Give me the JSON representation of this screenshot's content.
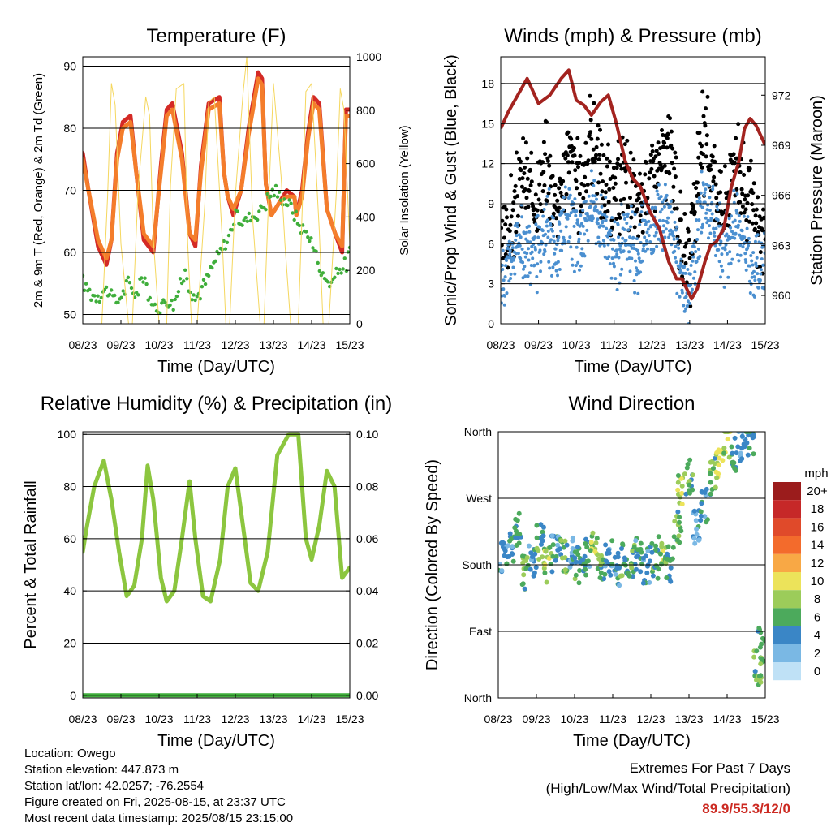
{
  "chart_data": [
    {
      "type": "line",
      "title": "Temperature (F)",
      "xlabel": "Time (Day/UTC)",
      "ylabel": "2m & 9m T (Red, Orange) & 2m Td (Green)",
      "y2label": "Solar Insolation (Yellow)",
      "x_ticks": [
        "08/23",
        "09/23",
        "10/23",
        "11/23",
        "12/23",
        "13/23",
        "14/23",
        "15/23"
      ],
      "ylim": [
        48.5,
        91.5
      ],
      "y_ticks": [
        50,
        60,
        70,
        80,
        90
      ],
      "y2lim": [
        0,
        1000
      ],
      "y2_ticks": [
        0,
        200,
        400,
        600,
        800,
        1000
      ],
      "grid": "horizontal",
      "series": [
        {
          "name": "2m T",
          "color": "#d42a25",
          "x": [
            0,
            0.15,
            0.4,
            0.62,
            0.75,
            0.9,
            1.05,
            1.25,
            1.4,
            1.6,
            1.85,
            2.05,
            2.2,
            2.35,
            2.6,
            2.8,
            2.95,
            3.1,
            3.3,
            3.58,
            3.7,
            3.8,
            3.95,
            4.15,
            4.35,
            4.6,
            4.7,
            4.8,
            4.95,
            5.15,
            5.35,
            5.55,
            5.6,
            5.75,
            5.9,
            6.05,
            6.2,
            6.4,
            6.62,
            6.8,
            6.9,
            7.0
          ],
          "values": [
            76,
            70,
            61,
            58,
            62,
            76,
            81,
            82,
            73,
            62,
            60,
            74,
            83,
            84,
            76,
            63,
            61,
            74,
            84,
            85,
            73,
            69,
            66,
            70,
            80,
            89,
            88,
            71,
            66,
            68,
            70,
            69,
            66,
            70,
            79,
            85,
            84,
            67,
            63,
            60,
            83,
            83
          ]
        },
        {
          "name": "9m T",
          "color": "#f47d2b",
          "x": [
            0,
            0.15,
            0.4,
            0.62,
            0.75,
            0.9,
            1.05,
            1.25,
            1.4,
            1.6,
            1.85,
            2.05,
            2.2,
            2.35,
            2.6,
            2.8,
            2.95,
            3.1,
            3.3,
            3.58,
            3.7,
            3.8,
            3.95,
            4.15,
            4.35,
            4.6,
            4.7,
            4.8,
            4.95,
            5.15,
            5.35,
            5.55,
            5.6,
            5.75,
            5.9,
            6.05,
            6.2,
            6.4,
            6.62,
            6.8,
            6.9,
            7.0
          ],
          "values": [
            75,
            70,
            62,
            59,
            62,
            75,
            80,
            81,
            73,
            63,
            61,
            73,
            82,
            83,
            75,
            63,
            62,
            73,
            83,
            84,
            73,
            69,
            67,
            70,
            79,
            88,
            87,
            71,
            66,
            68,
            69,
            69,
            66,
            69,
            78,
            84,
            83,
            67,
            63,
            61,
            82,
            82
          ]
        },
        {
          "name": "2m Td",
          "color": "#3fae3b",
          "x": [
            0,
            0.3,
            0.6,
            0.9,
            1.2,
            1.4,
            1.6,
            1.8,
            2.1,
            2.4,
            2.7,
            2.9,
            3.2,
            3.5,
            3.8,
            4.0,
            4.2,
            4.5,
            4.8,
            5.0,
            5.2,
            5.5,
            5.7,
            5.9,
            6.1,
            6.3,
            6.5,
            6.7,
            6.9,
            7.0
          ],
          "values": [
            55,
            53,
            54,
            52,
            55,
            53,
            57,
            51,
            52,
            52,
            57,
            52,
            55,
            59,
            62,
            66,
            65,
            66,
            68,
            70,
            69,
            67,
            64,
            63,
            60,
            56,
            55,
            57,
            58,
            60
          ]
        },
        {
          "name": "Solar",
          "color": "#f5d75e",
          "axis": "y2",
          "x": [
            0,
            0.3,
            0.5,
            0.65,
            0.75,
            0.85,
            1.0,
            1.2,
            1.3,
            1.45,
            1.65,
            1.75,
            1.85,
            2.0,
            2.2,
            2.3,
            2.45,
            2.65,
            2.75,
            2.85,
            3.0,
            3.2,
            3.3,
            3.45,
            3.65,
            3.75,
            3.85,
            4.0,
            4.2,
            4.3,
            4.45,
            4.65,
            4.75,
            4.85,
            5.0,
            5.2,
            5.3,
            5.45,
            5.65,
            5.75,
            5.85,
            6.0,
            6.2,
            6.3,
            6.45,
            6.65,
            6.75,
            6.85,
            7.0
          ],
          "values": [
            0,
            0,
            0,
            480,
            900,
            820,
            300,
            0,
            0,
            500,
            850,
            780,
            320,
            0,
            0,
            520,
            880,
            900,
            300,
            0,
            0,
            450,
            830,
            850,
            330,
            0,
            0,
            480,
            860,
            1000,
            400,
            0,
            0,
            380,
            900,
            550,
            300,
            0,
            0,
            420,
            870,
            900,
            350,
            0,
            0,
            500,
            880,
            800,
            300
          ]
        }
      ]
    },
    {
      "type": "scatter",
      "title": "Winds (mph) & Pressure (mb)",
      "xlabel": "Time (Day/UTC)",
      "ylabel": "Sonic/Prop Wind & Gust (Blue, Black)",
      "y2label": "Station Pressure (Maroon)",
      "x_ticks": [
        "08/23",
        "09/23",
        "10/23",
        "11/23",
        "12/23",
        "13/23",
        "14/23",
        "15/23"
      ],
      "ylim": [
        0,
        20
      ],
      "y_ticks": [
        0,
        3,
        6,
        9,
        12,
        15,
        18
      ],
      "y2lim": [
        958.3,
        974.3
      ],
      "y2_ticks": [
        960,
        963,
        966,
        969,
        972
      ],
      "grid": "horizontal",
      "series": [
        {
          "name": "Gust",
          "color": "#000000",
          "x": [
            0,
            0.3,
            0.6,
            0.9,
            1.2,
            1.5,
            1.8,
            2.1,
            2.4,
            2.7,
            3.0,
            3.3,
            3.6,
            3.9,
            4.2,
            4.5,
            4.8,
            5.0,
            5.3,
            5.6,
            5.9,
            6.2,
            6.5,
            6.8,
            7.0
          ],
          "values": [
            5,
            8,
            11,
            9,
            12,
            9,
            13,
            10,
            14,
            11,
            9,
            12,
            8,
            11,
            12,
            13,
            5,
            4,
            14,
            12,
            8,
            13,
            9,
            7,
            6
          ]
        },
        {
          "name": "Wind",
          "color": "#4a8fd0",
          "x": [
            0,
            0.3,
            0.6,
            0.9,
            1.2,
            1.5,
            1.8,
            2.1,
            2.4,
            2.7,
            3.0,
            3.3,
            3.6,
            3.9,
            4.2,
            4.5,
            4.8,
            5.0,
            5.3,
            5.6,
            5.9,
            6.2,
            6.5,
            6.8,
            7.0
          ],
          "values": [
            3,
            5,
            6,
            5,
            7,
            6,
            8,
            6,
            9,
            7,
            5,
            7,
            5,
            7,
            8,
            8,
            3,
            2,
            9,
            8,
            5,
            8,
            5,
            4,
            4
          ]
        },
        {
          "name": "Pressure",
          "color": "#a3231f",
          "axis": "y2",
          "x": [
            0,
            0.2,
            0.45,
            0.7,
            1.0,
            1.3,
            1.6,
            1.8,
            2.0,
            2.2,
            2.4,
            2.65,
            2.85,
            3.05,
            3.3,
            3.5,
            3.7,
            3.95,
            4.2,
            4.45,
            4.65,
            4.8,
            4.9,
            5.05,
            5.2,
            5.4,
            5.55,
            5.7,
            5.9,
            6.1,
            6.3,
            6.45,
            6.6,
            6.75,
            6.9,
            7.0
          ],
          "values": [
            970,
            971,
            972,
            973,
            971.5,
            972,
            973,
            973.5,
            971.7,
            971.4,
            970.8,
            971.6,
            972,
            970.4,
            968,
            967,
            966.5,
            965,
            964,
            962,
            961,
            961,
            960.5,
            959.8,
            960.4,
            962,
            963,
            963.2,
            964,
            966.5,
            968,
            970,
            970.6,
            970.2,
            969.5,
            969
          ]
        }
      ]
    },
    {
      "type": "line",
      "title": "Relative Humidity (%) & Precipitation (in)",
      "xlabel": "Time (Day/UTC)",
      "ylabel": "Percent & Total Rainfall",
      "x_ticks": [
        "08/23",
        "09/23",
        "10/23",
        "11/23",
        "12/23",
        "13/23",
        "14/23",
        "15/23"
      ],
      "ylim": [
        -1,
        101
      ],
      "y_ticks": [
        0,
        20,
        40,
        60,
        80,
        100
      ],
      "y2lim": [
        -0.001,
        0.101
      ],
      "y2_ticks": [
        "0.00",
        "0.02",
        "0.04",
        "0.06",
        "0.08",
        "0.10"
      ],
      "grid": "horizontal",
      "series": [
        {
          "name": "RH",
          "color": "#8cc63f",
          "x": [
            0,
            0.1,
            0.3,
            0.55,
            0.75,
            0.95,
            1.15,
            1.35,
            1.55,
            1.7,
            1.85,
            2.05,
            2.2,
            2.4,
            2.6,
            2.8,
            2.95,
            3.15,
            3.35,
            3.6,
            3.8,
            4.0,
            4.2,
            4.4,
            4.6,
            4.85,
            5.1,
            5.4,
            5.65,
            5.85,
            6.0,
            6.2,
            6.4,
            6.6,
            6.8,
            7.0
          ],
          "values": [
            55,
            64,
            80,
            90,
            75,
            55,
            38,
            42,
            60,
            88,
            75,
            45,
            36,
            40,
            60,
            82,
            60,
            38,
            36,
            52,
            80,
            87,
            65,
            43,
            40,
            55,
            92,
            100,
            100,
            60,
            52,
            65,
            86,
            80,
            45,
            49
          ]
        },
        {
          "name": "Precipitation",
          "color": "#3fae3b",
          "axis": "y2",
          "x": [
            0,
            7
          ],
          "values": [
            0,
            0
          ]
        }
      ]
    },
    {
      "type": "scatter",
      "title": "Wind Direction",
      "xlabel": "Time (Day/UTC)",
      "ylabel": "Direction (Colored By Speed)",
      "x_ticks": [
        "08/23",
        "09/23",
        "10/23",
        "11/23",
        "12/23",
        "13/23",
        "14/23",
        "15/23"
      ],
      "y_labels": [
        "North",
        "West",
        "South",
        "East",
        "North"
      ],
      "y_ticks": [
        360,
        270,
        180,
        90,
        0
      ],
      "ylim": [
        0,
        360
      ],
      "grid": "horizontal",
      "colorbar": {
        "label": "mph",
        "levels": [
          "20+",
          "18",
          "16",
          "14",
          "12",
          "10",
          "8",
          "6",
          "4",
          "2",
          "0"
        ],
        "colors": [
          "#9b1c1c",
          "#c62828",
          "#e04a2a",
          "#f36b2c",
          "#f8a845",
          "#ece35a",
          "#9ccc5a",
          "#4caa5c",
          "#3a86c6",
          "#7ab8e4",
          "#bfe1f6"
        ]
      },
      "series": [
        {
          "name": "Direction",
          "x": [
            0.1,
            0.3,
            0.5,
            0.7,
            0.9,
            1.1,
            1.3,
            1.5,
            1.7,
            1.9,
            2.1,
            2.3,
            2.5,
            2.7,
            2.9,
            3.1,
            3.3,
            3.5,
            3.7,
            3.9,
            4.1,
            4.3,
            4.5,
            4.7,
            4.8,
            5.0,
            5.2,
            5.4,
            5.6,
            5.8,
            6.0,
            6.2,
            6.4,
            6.6,
            6.8,
            6.9
          ],
          "values": [
            190,
            200,
            230,
            170,
            185,
            210,
            180,
            195,
            190,
            200,
            180,
            190,
            200,
            185,
            190,
            175,
            190,
            185,
            195,
            180,
            185,
            200,
            180,
            230,
            280,
            300,
            230,
            260,
            300,
            320,
            350,
            330,
            340,
            350,
            40,
            70
          ],
          "speeds": [
            3,
            4,
            5,
            6,
            3,
            5,
            7,
            4,
            6,
            3,
            5,
            4,
            8,
            6,
            3,
            4,
            5,
            6,
            4,
            3,
            5,
            7,
            4,
            6,
            8,
            5,
            3,
            4,
            6,
            10,
            8,
            5,
            3,
            4,
            6,
            5
          ]
        }
      ]
    }
  ],
  "info": {
    "location": "Location: Owego",
    "elevation": "Station elevation: 447.873 m",
    "latlon": "Station lat/lon: 42.0257; -76.2554",
    "created": "Figure created on Fri, 2025-08-15, at 23:37 UTC",
    "recent": "Most recent data timestamp: 2025/08/15 23:15:00"
  },
  "extremes": {
    "title": "Extremes For Past 7 Days",
    "subtitle": "(High/Low/Max Wind/Total Precipitation)",
    "values": "89.9/55.3/12/0"
  }
}
